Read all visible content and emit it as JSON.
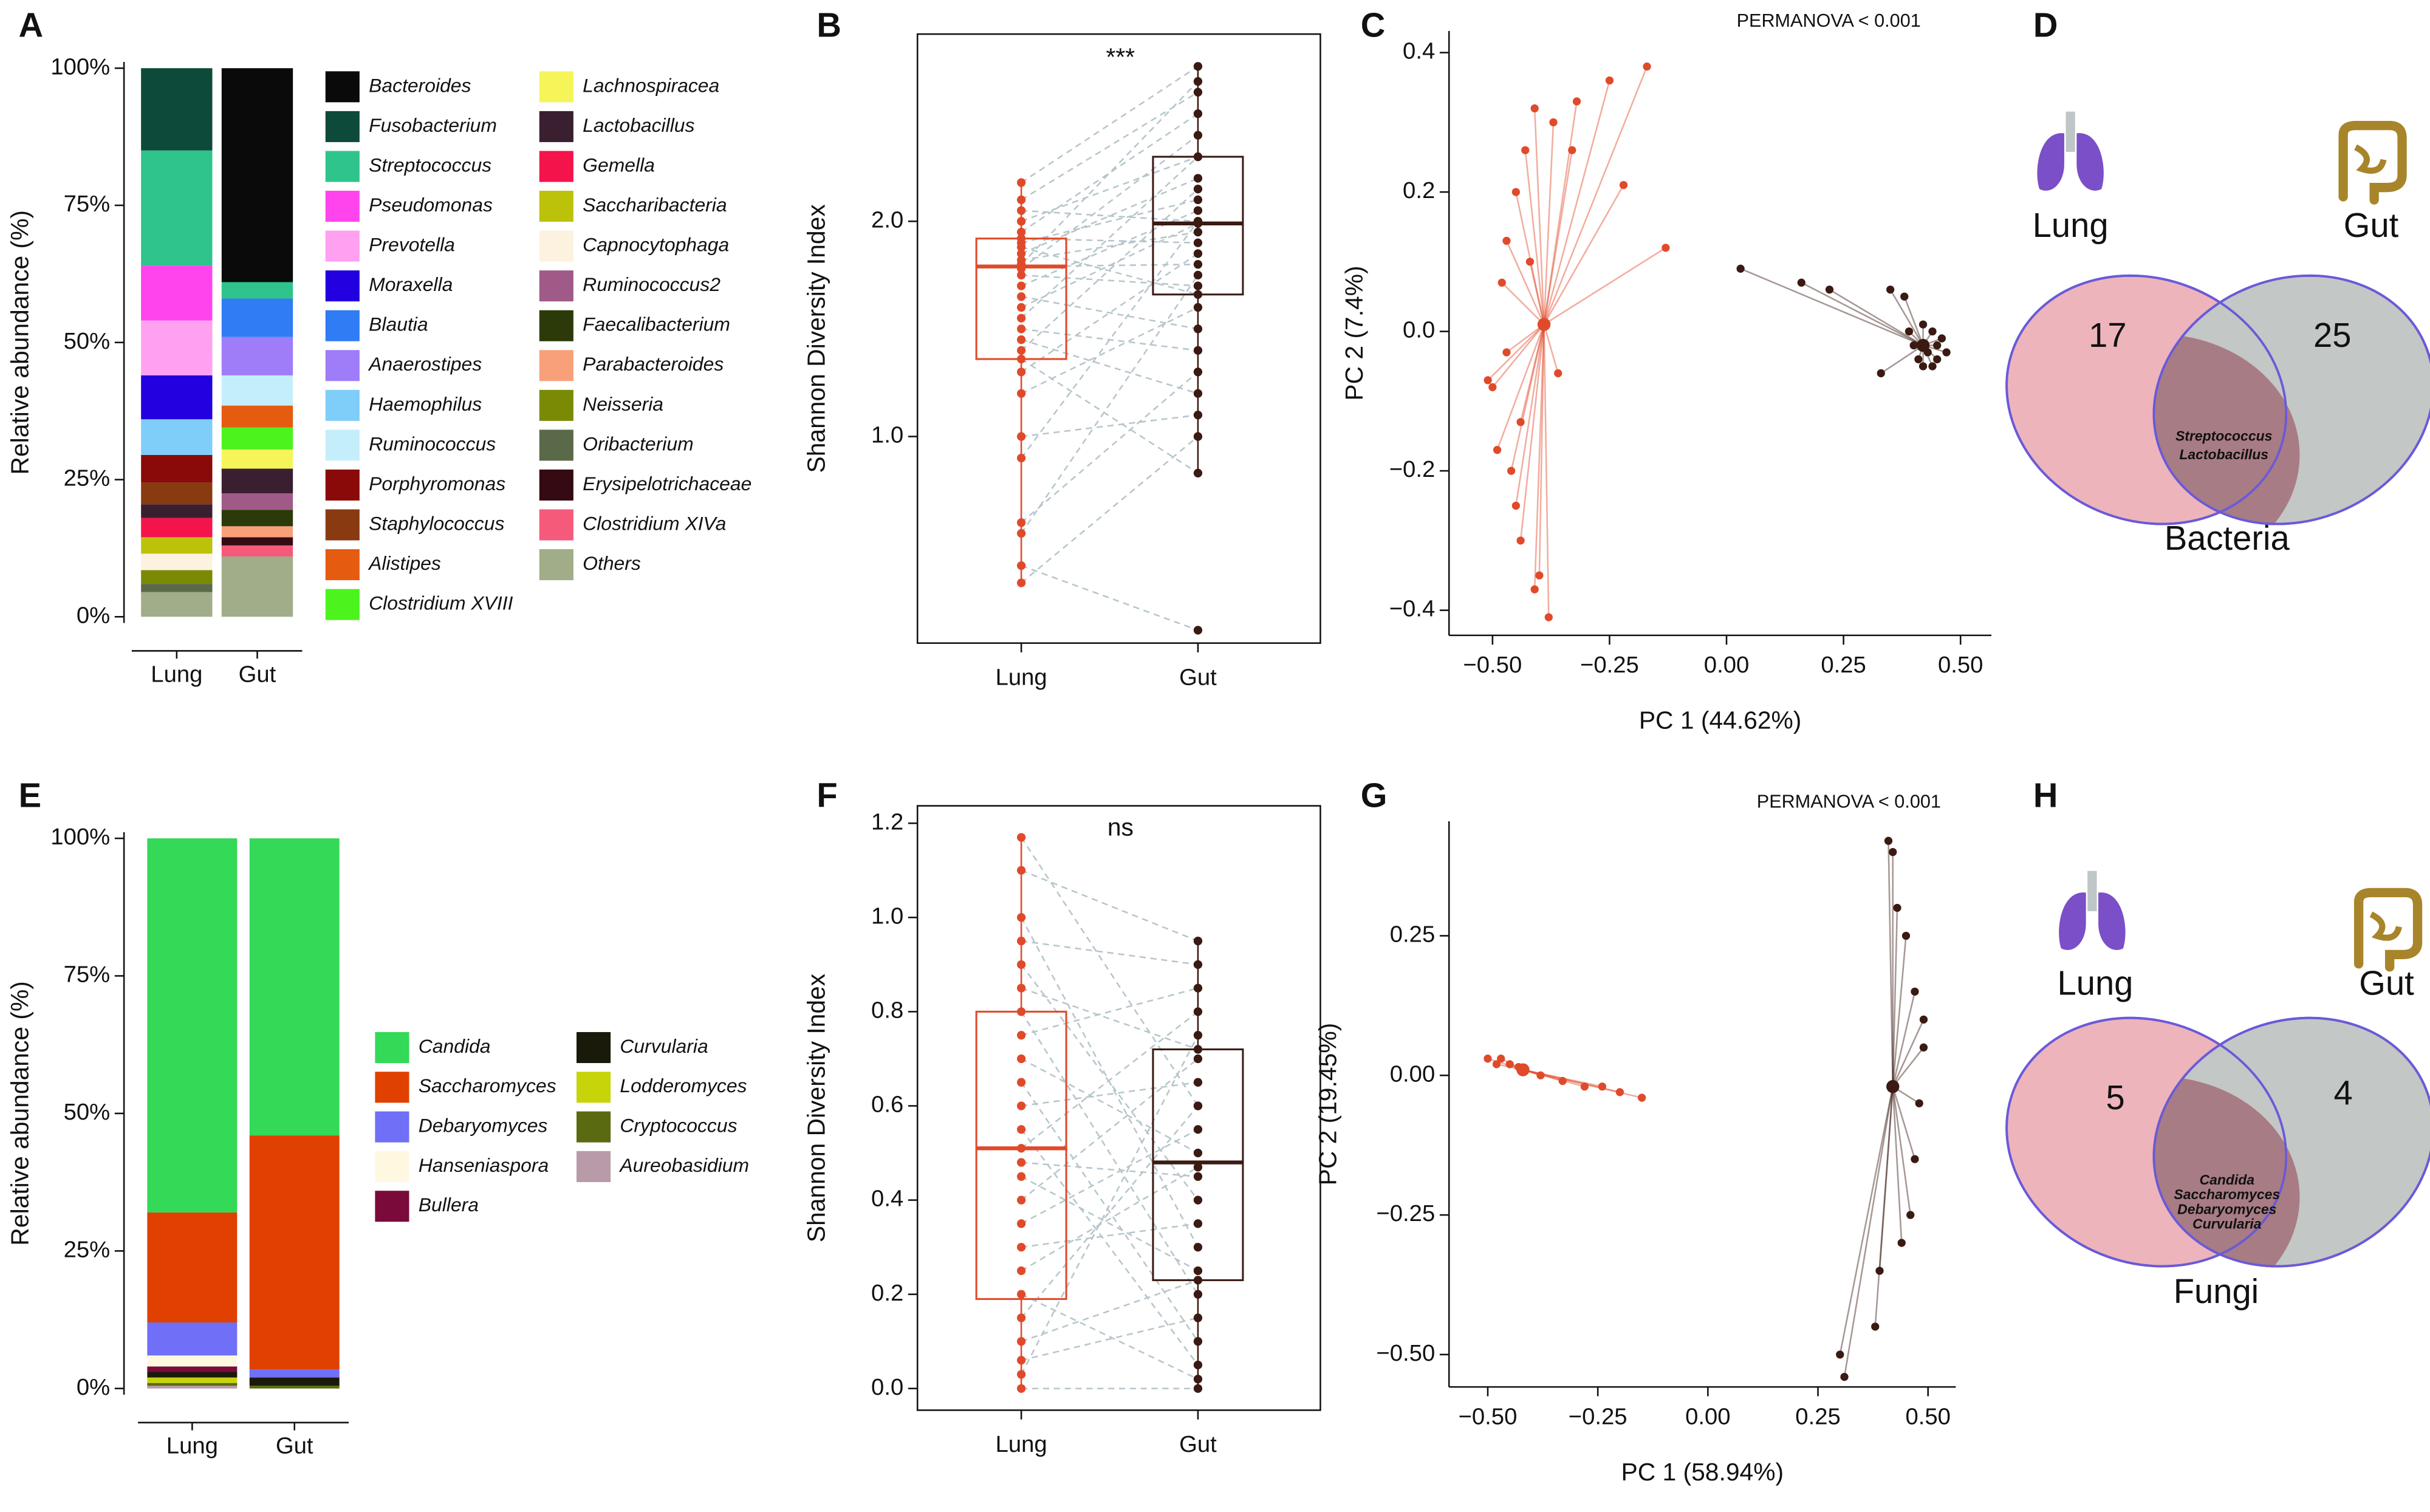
{
  "chart_data": [
    {
      "type": "stacked_bar",
      "panel": "A",
      "ylabel": "Relative abundance (%)",
      "categories": [
        "Lung",
        "Gut"
      ],
      "ylim": [
        0,
        100
      ],
      "yticks": [
        {
          "value": 0,
          "label": "0%"
        },
        {
          "value": 25,
          "label": "25%"
        },
        {
          "value": 50,
          "label": "50%"
        },
        {
          "value": 75,
          "label": "75%"
        },
        {
          "value": 100,
          "label": "100%"
        }
      ],
      "series": [
        {
          "name": "Bacteroides",
          "color": "#0a0a0a",
          "values": [
            0,
            39
          ]
        },
        {
          "name": "Fusobacterium",
          "color": "#0d4a3a",
          "values": [
            15,
            0
          ]
        },
        {
          "name": "Streptococcus",
          "color": "#2ec48c",
          "values": [
            21,
            3
          ]
        },
        {
          "name": "Pseudomonas",
          "color": "#ff44ee",
          "values": [
            10,
            0
          ]
        },
        {
          "name": "Prevotella",
          "color": "#ffa0f0",
          "values": [
            10,
            0
          ]
        },
        {
          "name": "Moraxella",
          "color": "#2200e0",
          "values": [
            8,
            0
          ]
        },
        {
          "name": "Blautia",
          "color": "#2f7cf5",
          "values": [
            0,
            7
          ]
        },
        {
          "name": "Anaerostipes",
          "color": "#9f7cf8",
          "values": [
            0,
            7
          ]
        },
        {
          "name": "Haemophilus",
          "color": "#7fcdf9",
          "values": [
            6.5,
            0
          ]
        },
        {
          "name": "Ruminococcus",
          "color": "#c5eefb",
          "values": [
            0,
            5.5
          ]
        },
        {
          "name": "Porphyromonas",
          "color": "#8a0a0a",
          "values": [
            5,
            0
          ]
        },
        {
          "name": "Staphylococcus",
          "color": "#8a3a10",
          "values": [
            4,
            0
          ]
        },
        {
          "name": "Alistipes",
          "color": "#e55b10",
          "values": [
            0,
            4
          ]
        },
        {
          "name": "Clostridium XVIII",
          "color": "#4cf31c",
          "values": [
            0,
            4
          ]
        },
        {
          "name": "Lachnospiracea",
          "color": "#f5f55a",
          "values": [
            0,
            3.5
          ]
        },
        {
          "name": "Lactobacillus",
          "color": "#3a1f30",
          "values": [
            2.5,
            4.5
          ]
        },
        {
          "name": "Gemella",
          "color": "#f5134b",
          "values": [
            3.5,
            0
          ]
        },
        {
          "name": "Saccharibacteria",
          "color": "#bcc20a",
          "values": [
            3,
            0
          ]
        },
        {
          "name": "Capnocytophaga",
          "color": "#fdf2df",
          "values": [
            3,
            0
          ]
        },
        {
          "name": "Ruminococcus2",
          "color": "#a05a88",
          "values": [
            0,
            3
          ]
        },
        {
          "name": "Faecalibacterium",
          "color": "#2b3a08",
          "values": [
            0,
            3
          ]
        },
        {
          "name": "Parabacteroides",
          "color": "#f7a07a",
          "values": [
            0,
            2
          ]
        },
        {
          "name": "Neisseria",
          "color": "#7a8a05",
          "values": [
            2.5,
            0
          ]
        },
        {
          "name": "Oribacterium",
          "color": "#5a6a48",
          "values": [
            1.5,
            0
          ]
        },
        {
          "name": "Erysipelotrichaceae",
          "color": "#350a12",
          "values": [
            0,
            1.5
          ]
        },
        {
          "name": "Clostridium XIVa",
          "color": "#f55a7a",
          "values": [
            0,
            2
          ]
        },
        {
          "name": "Others",
          "color": "#a0ad88",
          "values": [
            4.5,
            11
          ]
        }
      ]
    },
    {
      "type": "box",
      "panel": "B",
      "ylabel": "Shannon Diversity Index",
      "annotation": "***",
      "categories": [
        "Lung",
        "Gut"
      ],
      "ylim": [
        0.04,
        2.87
      ],
      "yticks": [
        {
          "value": 1,
          "label": "1.0"
        },
        {
          "value": 2,
          "label": "2.0"
        }
      ],
      "groups": [
        {
          "color": "#e04a2a",
          "stats": [
            0.32,
            1.36,
            1.79,
            1.92,
            2.18
          ],
          "values": [
            2.18,
            2.1,
            2.05,
            2.0,
            1.95,
            1.92,
            1.9,
            1.88,
            1.85,
            1.82,
            1.8,
            1.79,
            1.78,
            1.75,
            1.7,
            1.65,
            1.6,
            1.55,
            1.5,
            1.45,
            1.4,
            1.36,
            1.3,
            1.2,
            1.0,
            0.9,
            0.6,
            0.55,
            0.4,
            0.32
          ]
        },
        {
          "color": "#3a1a12",
          "stats": [
            0.83,
            1.66,
            1.99,
            2.3,
            2.72
          ],
          "values": [
            2.72,
            2.6,
            2.0,
            2.3,
            2.5,
            1.9,
            2.1,
            1.66,
            2.2,
            1.95,
            2.65,
            1.8,
            2.4,
            1.7,
            2.05,
            1.5,
            1.99,
            2.3,
            1.4,
            1.2,
            2.15,
            0.83,
            1.85,
            1.6,
            1.1,
            2.0,
            1.3,
            1.75,
            0.1,
            1.0
          ]
        }
      ]
    },
    {
      "type": "scatter",
      "panel": "C",
      "annotation": "PERMANOVA < 0.001",
      "xlabel": "PC 1 (44.62%)",
      "ylabel": "PC 2 (7.4%)",
      "xlim": [
        -0.593,
        0.566
      ],
      "ylim": [
        -0.436,
        0.431
      ],
      "xticks": [
        {
          "value": -0.5,
          "label": "−0.50"
        },
        {
          "value": -0.25,
          "label": "−0.25"
        },
        {
          "value": 0,
          "label": "0.00"
        },
        0.25,
        {
          "value": 0.5,
          "label": "0.50"
        }
      ],
      "yticks": [
        {
          "value": -0.4,
          "label": "−0.4"
        },
        {
          "value": -0.2,
          "label": "−0.2"
        },
        {
          "value": 0,
          "label": "0.0"
        },
        0.2,
        0.4
      ],
      "series": [
        {
          "color": "#e04a2a",
          "centroid": [
            -0.39,
            0.01
          ],
          "x": [
            -0.17,
            -0.25,
            -0.32,
            -0.41,
            -0.13,
            -0.37,
            -0.43,
            -0.33,
            -0.22,
            -0.45,
            -0.47,
            -0.42,
            -0.48,
            -0.5,
            -0.49,
            -0.46,
            -0.44,
            -0.4,
            -0.38,
            -0.41,
            -0.47,
            -0.44,
            -0.36,
            -0.45,
            -0.51
          ],
          "y": [
            0.38,
            0.36,
            0.33,
            0.32,
            0.12,
            0.3,
            0.26,
            0.26,
            0.21,
            0.2,
            0.13,
            0.1,
            0.07,
            -0.08,
            -0.17,
            -0.2,
            -0.3,
            -0.35,
            -0.41,
            -0.37,
            -0.03,
            -0.13,
            -0.06,
            -0.25,
            -0.07
          ]
        },
        {
          "color": "#3a1a12",
          "centroid": [
            0.42,
            -0.02
          ],
          "x": [
            0.03,
            0.16,
            0.22,
            0.35,
            0.38,
            0.42,
            0.44,
            0.45,
            0.43,
            0.41,
            0.46,
            0.4,
            0.33,
            0.44,
            0.47,
            0.39,
            0.45,
            0.42
          ],
          "y": [
            0.09,
            0.07,
            0.06,
            0.06,
            0.05,
            0.01,
            0.0,
            -0.02,
            -0.03,
            -0.04,
            -0.01,
            -0.02,
            -0.06,
            -0.05,
            -0.03,
            0.0,
            -0.04,
            -0.05
          ]
        }
      ]
    },
    {
      "type": "venn",
      "panel": "D",
      "title": "Bacteria",
      "sets": [
        {
          "name": "Lung",
          "count": 17
        },
        {
          "name": "Gut",
          "count": 25
        }
      ],
      "shared": [
        "Streptococcus",
        "Lactobacillus"
      ]
    },
    {
      "type": "stacked_bar",
      "panel": "E",
      "ylabel": "Relative abundance (%)",
      "categories": [
        "Lung",
        "Gut"
      ],
      "ylim": [
        0,
        100
      ],
      "yticks": [
        {
          "value": 0,
          "label": "0%"
        },
        {
          "value": 25,
          "label": "25%"
        },
        {
          "value": 50,
          "label": "50%"
        },
        {
          "value": 75,
          "label": "75%"
        },
        {
          "value": 100,
          "label": "100%"
        }
      ],
      "series": [
        {
          "name": "Candida",
          "color": "#33d957",
          "values": [
            68,
            54
          ]
        },
        {
          "name": "Saccharomyces",
          "color": "#e04000",
          "values": [
            20,
            42.5
          ]
        },
        {
          "name": "Debaryomyces",
          "color": "#6f6ff8",
          "values": [
            6,
            1.5
          ]
        },
        {
          "name": "Hanseniaspora",
          "color": "#fff8e0",
          "values": [
            2,
            0
          ]
        },
        {
          "name": "Bullera",
          "color": "#7a0a3a",
          "values": [
            1,
            0
          ]
        },
        {
          "name": "Curvularia",
          "color": "#1a1a0a",
          "values": [
            1,
            1.5
          ]
        },
        {
          "name": "Lodderomyces",
          "color": "#c8d40a",
          "values": [
            1,
            0
          ]
        },
        {
          "name": "Cryptococcus",
          "color": "#5a6a10",
          "values": [
            0.5,
            0.5
          ]
        },
        {
          "name": "Aureobasidium",
          "color": "#b89aa8",
          "values": [
            0.5,
            0
          ]
        }
      ]
    },
    {
      "type": "box",
      "panel": "F",
      "ylabel": "Shannon Diversity Index",
      "annotation": "ns",
      "categories": [
        "Lung",
        "Gut"
      ],
      "ylim": [
        -0.046,
        1.237
      ],
      "yticks": [
        {
          "value": 0,
          "label": "0.0"
        },
        0.2,
        0.4,
        0.6,
        0.8,
        {
          "value": 1,
          "label": "1.0"
        },
        1.2
      ],
      "groups": [
        {
          "color": "#e04a2a",
          "stats": [
            0,
            0.19,
            0.51,
            0.8,
            1.17
          ],
          "values": [
            1.17,
            1.1,
            1.0,
            0.95,
            0.9,
            0.85,
            0.8,
            0.75,
            0.7,
            0.65,
            0.6,
            0.55,
            0.51,
            0.48,
            0.45,
            0.4,
            0.35,
            0.3,
            0.25,
            0.2,
            0.15,
            0.1,
            0.06,
            0.03,
            0.0
          ]
        },
        {
          "color": "#3a1a12",
          "stats": [
            0,
            0.23,
            0.48,
            0.72,
            0.95
          ],
          "values": [
            0.6,
            0.95,
            0.3,
            0.9,
            0.4,
            0.72,
            0.2,
            0.85,
            0.5,
            0.1,
            0.65,
            0.05,
            0.8,
            0.45,
            0.25,
            0.7,
            0.55,
            0.35,
            0.47,
            0.02,
            0.6,
            0.23,
            0.15,
            0.75,
            0.0
          ]
        }
      ]
    },
    {
      "type": "scatter",
      "panel": "G",
      "annotation": "PERMANOVA < 0.001",
      "xlabel": "PC 1 (58.94%)",
      "ylabel": "PC 2 (19.45%)",
      "xlim": [
        -0.588,
        0.563
      ],
      "ylim": [
        -0.558,
        0.455
      ],
      "xticks": [
        {
          "value": -0.5,
          "label": "−0.50"
        },
        {
          "value": -0.25,
          "label": "−0.25"
        },
        {
          "value": 0,
          "label": "0.00"
        },
        0.25,
        {
          "value": 0.5,
          "label": "0.50"
        }
      ],
      "yticks": [
        {
          "value": -0.5,
          "label": "−0.50"
        },
        {
          "value": -0.25,
          "label": "−0.25"
        },
        {
          "value": 0,
          "label": "0.00"
        },
        0.25
      ],
      "series": [
        {
          "color": "#e04a2a",
          "centroid": [
            -0.42,
            0.01
          ],
          "x": [
            -0.5,
            -0.48,
            -0.45,
            -0.42,
            -0.38,
            -0.33,
            -0.28,
            -0.2,
            -0.15,
            -0.47,
            -0.43,
            -0.24
          ],
          "y": [
            0.03,
            0.02,
            0.02,
            0.01,
            0.0,
            -0.01,
            -0.02,
            -0.03,
            -0.04,
            0.03,
            0.015,
            -0.02
          ]
        },
        {
          "color": "#3a1a12",
          "centroid": [
            0.42,
            -0.02
          ],
          "x": [
            0.41,
            0.42,
            0.43,
            0.45,
            0.47,
            0.49,
            0.48,
            0.47,
            0.46,
            0.44,
            0.38,
            0.3,
            0.31,
            0.39,
            0.49
          ],
          "y": [
            0.42,
            0.4,
            0.3,
            0.25,
            0.15,
            0.05,
            -0.05,
            -0.15,
            -0.25,
            -0.3,
            -0.45,
            -0.5,
            -0.54,
            -0.35,
            0.1
          ]
        }
      ]
    },
    {
      "type": "venn",
      "panel": "H",
      "title": "Fungi",
      "sets": [
        {
          "name": "Lung",
          "count": 5
        },
        {
          "name": "Gut",
          "count": 4
        }
      ],
      "shared": [
        "Candida",
        "Saccharomyces",
        "Debaryomyces",
        "Curvularia"
      ]
    }
  ]
}
